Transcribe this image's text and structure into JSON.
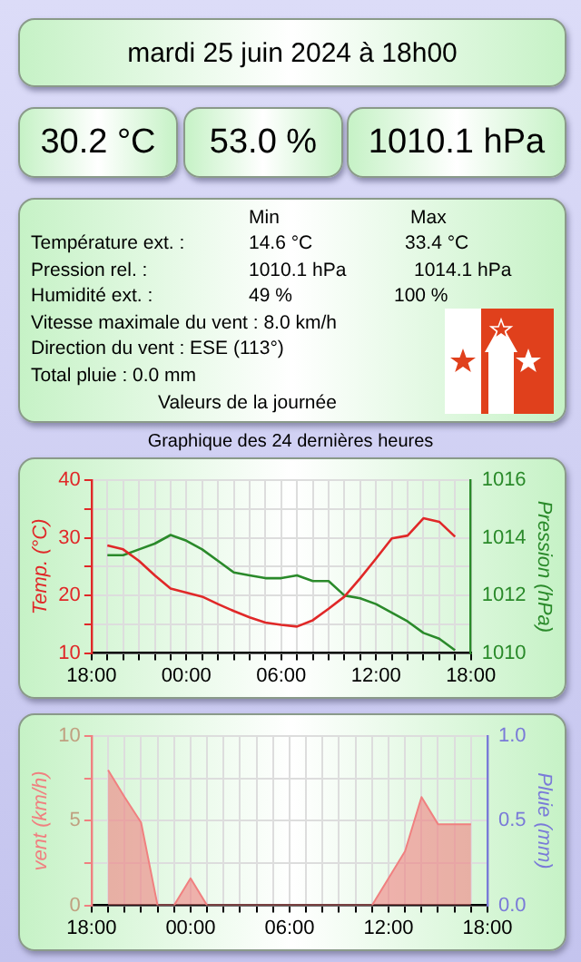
{
  "chart_data": [
    {
      "type": "other",
      "title": "mardi 25 juin 2024 à 18h00",
      "annotations": [
        "30.2 °C",
        "53.0 %",
        "1010.1 hPa",
        "Min",
        "Max",
        "Température ext. :",
        "14.6 °C",
        "33.4 °C",
        "Pression rel. :",
        "1010.1 hPa",
        "1014.1 hPa",
        "Humidité ext. :",
        "49 %",
        "100 %",
        "Vitesse maximale du vent : 8.0 km/h",
        "Direction du vent : ESE (113°)",
        "Total pluie : 0.0 mm",
        "Valeurs de la journée"
      ]
    },
    {
      "type": "line",
      "title": "Graphique des 24 dernières heures",
      "ylabel": "Temp. (°C)",
      "y2label": "Pression (hPa)",
      "grid": true,
      "legend": false,
      "marker": "none",
      "line_style": "solid",
      "x": [
        "2024-06-24T19:00",
        "2024-06-24T20:00",
        "2024-06-24T21:00",
        "2024-06-24T22:00",
        "2024-06-24T23:00",
        "2024-06-25T00:00",
        "2024-06-25T01:00",
        "2024-06-25T02:00",
        "2024-06-25T03:00",
        "2024-06-25T04:00",
        "2024-06-25T05:00",
        "2024-06-25T06:00",
        "2024-06-25T07:00",
        "2024-06-25T08:00",
        "2024-06-25T09:00",
        "2024-06-25T10:00",
        "2024-06-25T11:00",
        "2024-06-25T12:00",
        "2024-06-25T13:00",
        "2024-06-25T14:00",
        "2024-06-25T15:00",
        "2024-06-25T16:00",
        "2024-06-25T17:00"
      ],
      "xlim": [
        "2024-06-24T18:00",
        "2024-06-25T18:00"
      ],
      "xticks": [
        {
          "value": "2024-06-24T18:00",
          "label": "18:00"
        },
        {
          "value": "2024-06-24T19:00",
          "label": null
        },
        {
          "value": "2024-06-24T20:00",
          "label": null
        },
        {
          "value": "2024-06-24T21:00",
          "label": null
        },
        {
          "value": "2024-06-24T22:00",
          "label": null
        },
        {
          "value": "2024-06-24T23:00",
          "label": null
        },
        {
          "value": "2024-06-25T00:00",
          "label": "00:00"
        },
        {
          "value": "2024-06-25T01:00",
          "label": null
        },
        {
          "value": "2024-06-25T02:00",
          "label": null
        },
        {
          "value": "2024-06-25T03:00",
          "label": null
        },
        {
          "value": "2024-06-25T04:00",
          "label": null
        },
        {
          "value": "2024-06-25T05:00",
          "label": null
        },
        {
          "value": "2024-06-25T06:00",
          "label": "06:00"
        },
        {
          "value": "2024-06-25T07:00",
          "label": null
        },
        {
          "value": "2024-06-25T08:00",
          "label": null
        },
        {
          "value": "2024-06-25T09:00",
          "label": null
        },
        {
          "value": "2024-06-25T10:00",
          "label": null
        },
        {
          "value": "2024-06-25T11:00",
          "label": null
        },
        {
          "value": "2024-06-25T12:00",
          "label": "12:00"
        },
        {
          "value": "2024-06-25T13:00",
          "label": null
        },
        {
          "value": "2024-06-25T14:00",
          "label": null
        },
        {
          "value": "2024-06-25T15:00",
          "label": null
        },
        {
          "value": "2024-06-25T16:00",
          "label": null
        },
        {
          "value": "2024-06-25T17:00",
          "label": null
        },
        {
          "value": "2024-06-25T18:00",
          "label": "18:00"
        }
      ],
      "ylim": [
        10,
        40
      ],
      "yticks": [
        10,
        {
          "value": 15,
          "label": null
        },
        20,
        {
          "value": 25,
          "label": null
        },
        30,
        {
          "value": 35,
          "label": null
        },
        40
      ],
      "y2lim": [
        1010,
        1016
      ],
      "y2ticks": [
        1010,
        {
          "value": 1011,
          "label": null
        },
        1012,
        {
          "value": 1013,
          "label": null
        },
        1014,
        {
          "value": 1015,
          "label": null
        },
        1016
      ],
      "series": [
        {
          "color": "#e02828",
          "values": [
            28.7,
            28.0,
            26.0,
            23.5,
            21.2,
            20.5,
            19.8,
            18.5,
            17.3,
            16.2,
            15.3,
            14.9,
            14.6,
            15.7,
            17.7,
            19.8,
            23.0,
            26.4,
            29.9,
            30.4,
            33.4,
            32.8,
            30.2
          ]
        },
        {
          "color": "#2a8a2a",
          "axis": "y2",
          "values": [
            1013.4,
            1013.4,
            1013.6,
            1013.8,
            1014.1,
            1013.9,
            1013.6,
            1013.2,
            1012.8,
            1012.7,
            1012.6,
            1012.6,
            1012.7,
            1012.5,
            1012.5,
            1012.0,
            1011.9,
            1011.7,
            1011.4,
            1011.1,
            1010.7,
            1010.5,
            1010.1
          ]
        }
      ]
    },
    {
      "type": "area",
      "ylabel": "vent (km/h)",
      "y2label": "Pluie (mm)",
      "grid": true,
      "legend": false,
      "marker": "none",
      "x": [
        "2024-06-24T19:00",
        "2024-06-24T20:00",
        "2024-06-24T21:00",
        "2024-06-24T22:00",
        "2024-06-24T23:00",
        "2024-06-25T00:00",
        "2024-06-25T01:00",
        "2024-06-25T02:00",
        "2024-06-25T03:00",
        "2024-06-25T04:00",
        "2024-06-25T05:00",
        "2024-06-25T06:00",
        "2024-06-25T07:00",
        "2024-06-25T08:00",
        "2024-06-25T09:00",
        "2024-06-25T10:00",
        "2024-06-25T11:00",
        "2024-06-25T12:00",
        "2024-06-25T13:00",
        "2024-06-25T14:00",
        "2024-06-25T15:00",
        "2024-06-25T16:00",
        "2024-06-25T17:00"
      ],
      "xlim": [
        "2024-06-24T18:00",
        "2024-06-25T18:00"
      ],
      "xticks": [
        {
          "value": "2024-06-24T18:00",
          "label": "18:00"
        },
        {
          "value": "2024-06-24T19:00",
          "label": null
        },
        {
          "value": "2024-06-24T20:00",
          "label": null
        },
        {
          "value": "2024-06-24T21:00",
          "label": null
        },
        {
          "value": "2024-06-24T22:00",
          "label": null
        },
        {
          "value": "2024-06-24T23:00",
          "label": null
        },
        {
          "value": "2024-06-25T00:00",
          "label": "00:00"
        },
        {
          "value": "2024-06-25T01:00",
          "label": null
        },
        {
          "value": "2024-06-25T02:00",
          "label": null
        },
        {
          "value": "2024-06-25T03:00",
          "label": null
        },
        {
          "value": "2024-06-25T04:00",
          "label": null
        },
        {
          "value": "2024-06-25T05:00",
          "label": null
        },
        {
          "value": "2024-06-25T06:00",
          "label": "06:00"
        },
        {
          "value": "2024-06-25T07:00",
          "label": null
        },
        {
          "value": "2024-06-25T08:00",
          "label": null
        },
        {
          "value": "2024-06-25T09:00",
          "label": null
        },
        {
          "value": "2024-06-25T10:00",
          "label": null
        },
        {
          "value": "2024-06-25T11:00",
          "label": null
        },
        {
          "value": "2024-06-25T12:00",
          "label": "12:00"
        },
        {
          "value": "2024-06-25T13:00",
          "label": null
        },
        {
          "value": "2024-06-25T14:00",
          "label": null
        },
        {
          "value": "2024-06-25T15:00",
          "label": null
        },
        {
          "value": "2024-06-25T16:00",
          "label": null
        },
        {
          "value": "2024-06-25T17:00",
          "label": null
        },
        {
          "value": "2024-06-25T18:00",
          "label": "18:00"
        }
      ],
      "ylim": [
        0,
        10
      ],
      "yticks": [
        0,
        {
          "value": 2.5,
          "label": null
        },
        5,
        {
          "value": 7.5,
          "label": null
        },
        10
      ],
      "y2lim": [
        0,
        1
      ],
      "y2ticks": [
        {
          "value": 0,
          "label": "0.0"
        },
        {
          "value": 0.25,
          "label": null
        },
        {
          "value": 0.5,
          "label": "0.5"
        },
        {
          "value": 0.75,
          "label": null
        },
        {
          "value": 1,
          "label": "1.0"
        }
      ],
      "series": [
        {
          "color": "#f08080",
          "values": [
            8.0,
            6.4,
            4.9,
            0,
            0,
            1.6,
            0,
            0,
            0,
            0,
            0,
            0,
            0,
            0,
            0,
            0,
            0,
            1.6,
            3.2,
            6.4,
            4.8,
            4.8,
            4.8
          ]
        }
      ]
    }
  ]
}
